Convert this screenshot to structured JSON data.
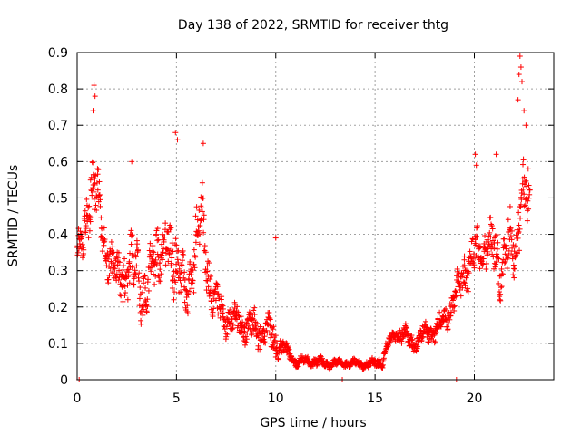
{
  "chart_data": {
    "type": "scatter",
    "title": "Day 138 of 2022, SRMTID for receiver thtg",
    "xlabel": "GPS time / hours",
    "ylabel": "SRMTID / TECUs",
    "xlim": [
      0,
      24
    ],
    "ylim": [
      0,
      0.9
    ],
    "xticks": [
      0,
      5,
      10,
      15,
      20
    ],
    "xtick_labels": [
      "0",
      "5",
      "10",
      "15",
      "20"
    ],
    "yticks": [
      0,
      0.1,
      0.2,
      0.3,
      0.4,
      0.5,
      0.6,
      0.7,
      0.8,
      0.9
    ],
    "ytick_labels": [
      "0",
      "0.1",
      "0.2",
      "0.3",
      "0.4",
      "0.5",
      "0.6",
      "0.7",
      "0.8",
      "0.9"
    ],
    "grid": true,
    "marker": "+",
    "color": "#ff0000",
    "series": [
      {
        "name": "SRMTID",
        "profile_x": [
          0,
          0.3,
          0.6,
          0.8,
          1.0,
          1.5,
          2.0,
          2.5,
          3.0,
          3.5,
          4.0,
          4.5,
          5.0,
          5.5,
          6.0,
          6.3,
          6.6,
          7.0,
          7.5,
          8.0,
          8.5,
          9.0,
          9.5,
          10.0,
          10.3,
          10.6,
          11.0,
          11.5,
          12.0,
          12.5,
          13.0,
          13.5,
          14.0,
          14.5,
          15.0,
          15.4,
          15.7,
          16.0,
          16.5,
          17.0,
          17.5,
          18.0,
          18.5,
          19.0,
          19.5,
          20.0,
          20.5,
          21.0,
          21.5,
          22.0,
          22.3,
          22.6,
          22.8
        ],
        "profile_y": [
          0.36,
          0.35,
          0.52,
          0.58,
          0.48,
          0.36,
          0.28,
          0.3,
          0.3,
          0.22,
          0.38,
          0.34,
          0.36,
          0.2,
          0.4,
          0.42,
          0.3,
          0.2,
          0.17,
          0.16,
          0.15,
          0.14,
          0.14,
          0.1,
          0.09,
          0.07,
          0.05,
          0.05,
          0.05,
          0.045,
          0.045,
          0.045,
          0.045,
          0.04,
          0.045,
          0.06,
          0.1,
          0.13,
          0.12,
          0.1,
          0.13,
          0.13,
          0.17,
          0.22,
          0.3,
          0.34,
          0.38,
          0.34,
          0.32,
          0.38,
          0.48,
          0.5,
          0.45
        ],
        "spread": [
          0.08,
          0.08,
          0.14,
          0.16,
          0.12,
          0.1,
          0.1,
          0.12,
          0.14,
          0.1,
          0.14,
          0.12,
          0.16,
          0.1,
          0.14,
          0.14,
          0.1,
          0.08,
          0.06,
          0.06,
          0.06,
          0.07,
          0.07,
          0.07,
          0.05,
          0.03,
          0.02,
          0.02,
          0.02,
          0.02,
          0.015,
          0.015,
          0.015,
          0.015,
          0.02,
          0.03,
          0.03,
          0.03,
          0.04,
          0.04,
          0.04,
          0.04,
          0.05,
          0.06,
          0.08,
          0.1,
          0.1,
          0.12,
          0.12,
          0.14,
          0.2,
          0.2,
          0.12
        ],
        "points": [
          [
            0.1,
            0.0
          ],
          [
            13.35,
            0.0
          ],
          [
            19.1,
            0.0
          ],
          [
            0.85,
            0.81
          ],
          [
            0.9,
            0.78
          ],
          [
            0.8,
            0.74
          ],
          [
            4.95,
            0.68
          ],
          [
            5.05,
            0.66
          ],
          [
            6.35,
            0.65
          ],
          [
            2.75,
            0.6
          ],
          [
            10.0,
            0.39
          ],
          [
            22.3,
            0.89
          ],
          [
            22.35,
            0.86
          ],
          [
            22.25,
            0.84
          ],
          [
            22.4,
            0.82
          ],
          [
            22.2,
            0.77
          ],
          [
            22.5,
            0.74
          ],
          [
            22.6,
            0.7
          ],
          [
            20.05,
            0.62
          ],
          [
            20.1,
            0.59
          ],
          [
            21.1,
            0.62
          ],
          [
            19.5,
            0.34
          ]
        ]
      }
    ]
  }
}
